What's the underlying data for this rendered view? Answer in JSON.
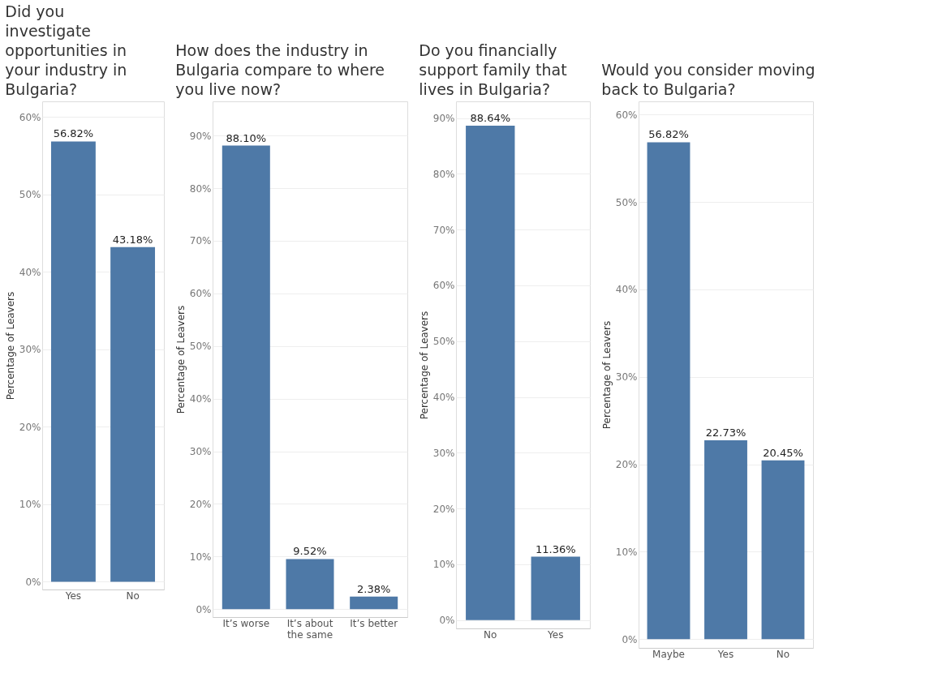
{
  "chart_data": [
    {
      "type": "bar",
      "title": "Did you investigate opportunities in your industry in Bulgaria?",
      "ylabel": "Percentage of Leavers",
      "categories": [
        "Yes",
        "No"
      ],
      "values": [
        56.82,
        43.18
      ],
      "value_labels": [
        "56.82%",
        "43.18%"
      ],
      "color": "#4e79a7",
      "ylim": [
        -1,
        62
      ],
      "yticks": [
        {
          "value": 0,
          "label": "0%"
        },
        {
          "value": 10,
          "label": "10%"
        },
        {
          "value": 20,
          "label": "20%"
        },
        {
          "value": 30,
          "label": "30%"
        },
        {
          "value": 40,
          "label": "40%"
        },
        {
          "value": 50,
          "label": "50%"
        },
        {
          "value": 60,
          "label": "60%"
        }
      ],
      "grid": "y"
    },
    {
      "type": "bar",
      "title": "How does the industry in Bulgaria compare to where you live now?",
      "ylabel": "Percentage of Leavers",
      "categories": [
        "It’s worse",
        "It’s about the same",
        "It’s better"
      ],
      "values": [
        88.1,
        9.52,
        2.38
      ],
      "value_labels": [
        "88.10%",
        "9.52%",
        "2.38%"
      ],
      "color": "#4e79a7",
      "ylim": [
        -1.5,
        96.5
      ],
      "yticks": [
        {
          "value": 0,
          "label": "0%"
        },
        {
          "value": 10,
          "label": "10%"
        },
        {
          "value": 20,
          "label": "20%"
        },
        {
          "value": 30,
          "label": "30%"
        },
        {
          "value": 40,
          "label": "40%"
        },
        {
          "value": 50,
          "label": "50%"
        },
        {
          "value": 60,
          "label": "60%"
        },
        {
          "value": 70,
          "label": "70%"
        },
        {
          "value": 80,
          "label": "80%"
        },
        {
          "value": 90,
          "label": "90%"
        }
      ],
      "grid": "y"
    },
    {
      "type": "bar",
      "title": "Do you financially support family that lives in Bulgaria?",
      "ylabel": "Percentage of Leavers",
      "categories": [
        "No",
        "Yes"
      ],
      "values": [
        88.64,
        11.36
      ],
      "value_labels": [
        "88.64%",
        "11.36%"
      ],
      "color": "#4e79a7",
      "ylim": [
        -1.5,
        93
      ],
      "yticks": [
        {
          "value": 0,
          "label": "0%"
        },
        {
          "value": 10,
          "label": "10%"
        },
        {
          "value": 20,
          "label": "20%"
        },
        {
          "value": 30,
          "label": "30%"
        },
        {
          "value": 40,
          "label": "40%"
        },
        {
          "value": 50,
          "label": "50%"
        },
        {
          "value": 60,
          "label": "60%"
        },
        {
          "value": 70,
          "label": "70%"
        },
        {
          "value": 80,
          "label": "80%"
        },
        {
          "value": 90,
          "label": "90%"
        }
      ],
      "grid": "y"
    },
    {
      "type": "bar",
      "title": "Would you consider moving back to Bulgaria?",
      "ylabel": "Percentage of Leavers",
      "categories": [
        "Maybe",
        "Yes",
        "No"
      ],
      "values": [
        56.82,
        22.73,
        20.45
      ],
      "value_labels": [
        "56.82%",
        "22.73%",
        "20.45%"
      ],
      "color": "#4e79a7",
      "ylim": [
        -1,
        61.5
      ],
      "yticks": [
        {
          "value": 0,
          "label": "0%"
        },
        {
          "value": 10,
          "label": "10%"
        },
        {
          "value": 20,
          "label": "20%"
        },
        {
          "value": 30,
          "label": "30%"
        },
        {
          "value": 40,
          "label": "40%"
        },
        {
          "value": 50,
          "label": "50%"
        },
        {
          "value": 60,
          "label": "60%"
        }
      ],
      "grid": "y"
    }
  ]
}
